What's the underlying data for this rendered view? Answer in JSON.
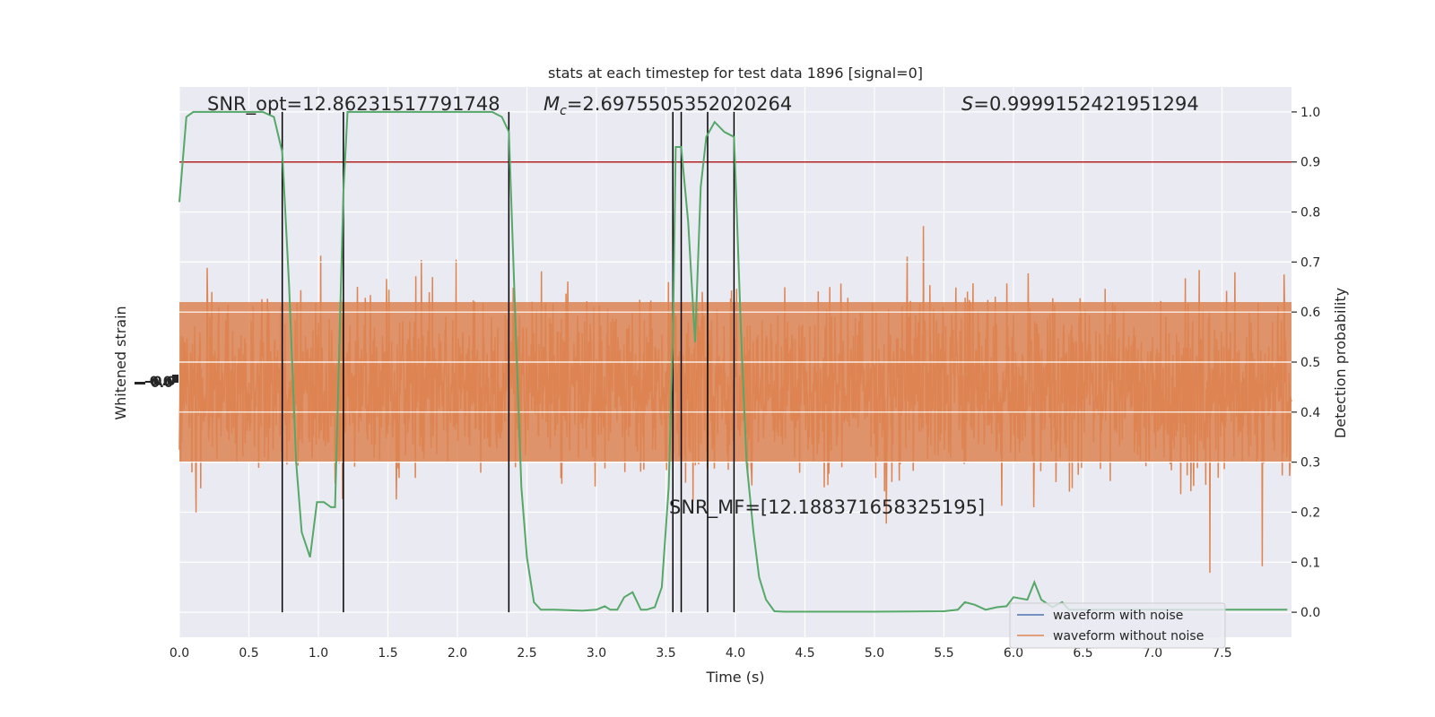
{
  "chart_data": {
    "type": "line",
    "title": "stats at each timestep for test data 1896 [signal=0]",
    "xlabel": "Time (s)",
    "ylabel_left": "Whitened strain",
    "ylabel_right": "Detection probability",
    "xlim": [
      0,
      8.0
    ],
    "ylim_right": [
      -0.05,
      1.05
    ],
    "x_ticks": [
      "0.0",
      "0.5",
      "1.0",
      "1.5",
      "2.0",
      "2.5",
      "3.0",
      "3.5",
      "4.0",
      "4.5",
      "5.0",
      "5.5",
      "6.0",
      "6.5",
      "7.0",
      "7.5"
    ],
    "x_tick_values": [
      0,
      0.5,
      1.0,
      1.5,
      2.0,
      2.5,
      3.0,
      3.5,
      4.0,
      4.5,
      5.0,
      5.5,
      6.0,
      6.5,
      7.0,
      7.5
    ],
    "y_right_ticks": [
      "0.0",
      "0.1",
      "0.2",
      "0.3",
      "0.4",
      "0.5",
      "0.6",
      "0.7",
      "0.8",
      "0.9",
      "1.0"
    ],
    "y_right_tick_values": [
      0,
      0.1,
      0.2,
      0.3,
      0.4,
      0.5,
      0.6,
      0.7,
      0.8,
      0.9,
      1.0
    ],
    "grid": true,
    "legend_position": "lower-right",
    "threshold": {
      "value": 0.9,
      "color": "#b22222"
    },
    "event_lines": [
      0.74,
      1.18,
      2.37,
      3.55,
      3.61,
      3.8,
      3.99
    ],
    "annotations": {
      "snr_opt": "SNR_opt=12.86231517791748",
      "mc_symbol": "M",
      "mc_sub": "c",
      "mc_value": "=2.6975505352020264",
      "s_symbol": "S",
      "s_value": "=0.9999152421951294",
      "snr_mf": "SNR_MF=[12.188371658325195]"
    },
    "series": [
      {
        "name": "waveform with noise",
        "color": "#4c72b0",
        "legend": true
      },
      {
        "name": "waveform without noise",
        "color": "#dd8452",
        "legend": true
      },
      {
        "color": "#55a868",
        "legend": false,
        "x": [
          0.0,
          0.05,
          0.1,
          0.15,
          0.2,
          0.3,
          0.4,
          0.5,
          0.6,
          0.68,
          0.74,
          0.79,
          0.84,
          0.88,
          0.94,
          0.99,
          1.04,
          1.09,
          1.12,
          1.18,
          1.21,
          1.25,
          1.3,
          1.5,
          1.7,
          1.9,
          2.1,
          2.25,
          2.32,
          2.37,
          2.42,
          2.46,
          2.5,
          2.55,
          2.6,
          2.65,
          2.7,
          2.9,
          3.0,
          3.06,
          3.1,
          3.15,
          3.2,
          3.26,
          3.32,
          3.36,
          3.42,
          3.47,
          3.52,
          3.55,
          3.57,
          3.61,
          3.66,
          3.71,
          3.75,
          3.79,
          3.85,
          3.92,
          3.99,
          4.04,
          4.08,
          4.13,
          4.17,
          4.22,
          4.28,
          4.35,
          4.5,
          5.0,
          5.5,
          5.6,
          5.65,
          5.72,
          5.8,
          5.88,
          5.95,
          6.0,
          6.1,
          6.15,
          6.2,
          6.28,
          6.35,
          6.4,
          6.45,
          6.5,
          6.7,
          7.0,
          7.5,
          7.9,
          7.97
        ],
        "values": [
          0.82,
          0.99,
          1.0,
          1.0,
          1.0,
          1.0,
          1.0,
          1.0,
          1.0,
          0.99,
          0.92,
          0.65,
          0.3,
          0.16,
          0.11,
          0.22,
          0.22,
          0.21,
          0.21,
          0.84,
          1.0,
          1.0,
          1.0,
          1.0,
          1.0,
          1.0,
          1.0,
          1.0,
          0.99,
          0.96,
          0.56,
          0.25,
          0.11,
          0.02,
          0.005,
          0.005,
          0.005,
          0.003,
          0.005,
          0.012,
          0.005,
          0.005,
          0.03,
          0.04,
          0.005,
          0.005,
          0.01,
          0.05,
          0.25,
          0.55,
          0.93,
          0.93,
          0.78,
          0.54,
          0.85,
          0.95,
          0.98,
          0.96,
          0.95,
          0.56,
          0.3,
          0.16,
          0.07,
          0.025,
          0.002,
          0.001,
          0.001,
          0.001,
          0.002,
          0.005,
          0.02,
          0.015,
          0.005,
          0.01,
          0.012,
          0.03,
          0.025,
          0.06,
          0.025,
          0.01,
          0.02,
          0.005,
          0.005,
          0.005,
          0.005,
          0.005,
          0.005,
          0.005,
          0.005
        ]
      }
    ],
    "left_axis_tick_labels": [
      "-0.0",
      "-0.0",
      "0.0",
      "0.0"
    ]
  }
}
